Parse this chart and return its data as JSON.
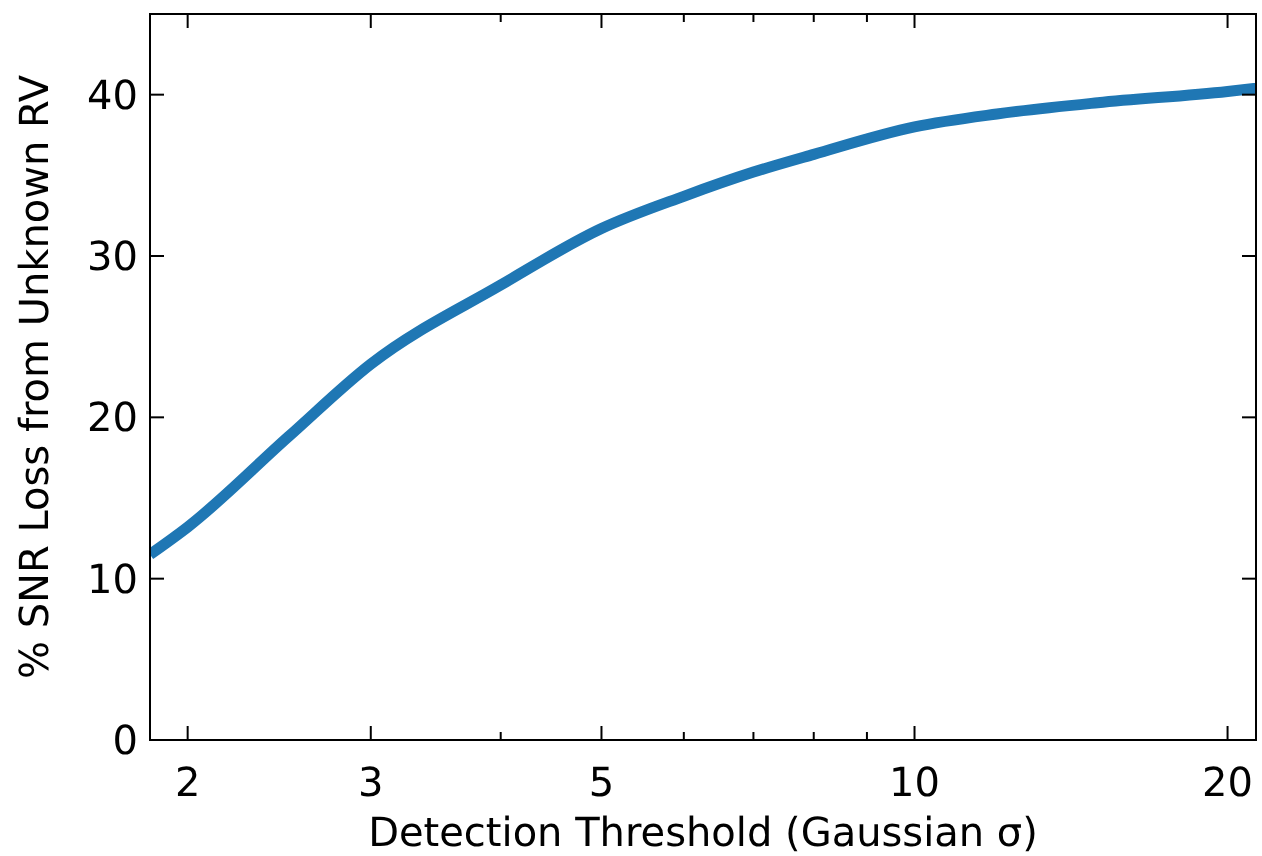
{
  "chart_data": {
    "type": "line",
    "xlabel": "Detection Threshold (Gaussian σ)",
    "ylabel": "% SNR Loss from Unknown RV",
    "log": "x",
    "xlim": [
      1.84,
      21.3
    ],
    "ylim": [
      0,
      45
    ],
    "xticks": [
      2,
      3,
      {
        "value": 4,
        "label": null
      },
      5,
      {
        "value": 6,
        "label": null
      },
      {
        "value": 7,
        "label": null
      },
      {
        "value": 8,
        "label": null
      },
      {
        "value": 9,
        "label": null
      },
      10,
      20
    ],
    "yticks": [
      0,
      10,
      20,
      30,
      40
    ],
    "grid": false,
    "marker": "none",
    "line_style": "solid",
    "x": [
      1.84,
      2,
      2.5,
      3,
      4,
      5,
      6,
      7,
      8,
      10,
      12,
      15,
      20,
      21.3
    ],
    "series": [
      {
        "color": "#1f77b4",
        "values": [
          11.5,
          13.2,
          18.8,
          23.3,
          28.2,
          31.7,
          33.7,
          35.2,
          36.3,
          38.0,
          38.8,
          39.5,
          40.2,
          40.4
        ]
      }
    ]
  }
}
